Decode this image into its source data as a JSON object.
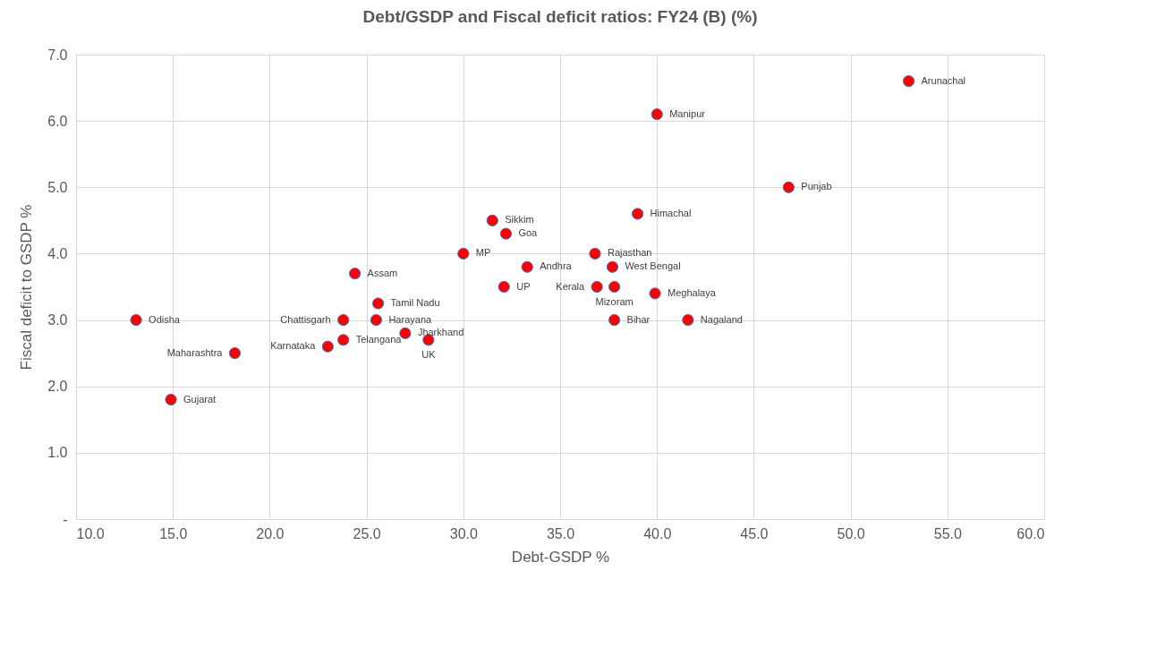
{
  "chart_data": {
    "type": "scatter",
    "title": "Debt/GSDP and Fiscal deficit ratios: FY24 (B) (%)",
    "xlabel": "Debt-GSDP %",
    "ylabel": "Fiscal deficit  to GSDP %",
    "x": [
      53.0,
      40.0,
      46.8,
      39.0,
      31.5,
      32.2,
      30.0,
      36.8,
      33.3,
      37.7,
      24.4,
      32.1,
      36.9,
      37.8,
      39.9,
      25.6,
      23.8,
      25.5,
      13.1,
      41.6,
      37.8,
      27.0,
      28.2,
      23.8,
      23.0,
      18.2,
      14.9
    ],
    "series": [
      {
        "color": "#ff0000",
        "values": [
          6.6,
          6.1,
          5.0,
          4.6,
          4.5,
          4.3,
          4.0,
          4.0,
          3.8,
          3.8,
          3.7,
          3.5,
          3.5,
          3.5,
          3.4,
          3.25,
          3.0,
          3.0,
          3.0,
          3.0,
          3.0,
          2.8,
          2.7,
          2.7,
          2.6,
          2.5,
          1.8
        ]
      }
    ],
    "annotations": [
      {
        "text": "Arunachal",
        "x": 53.0,
        "y": 6.6
      },
      {
        "text": "Manipur",
        "x": 40.0,
        "y": 6.1
      },
      {
        "text": "Punjab",
        "x": 46.8,
        "y": 5.0
      },
      {
        "text": "Himachal",
        "x": 39.0,
        "y": 4.6
      },
      {
        "text": "Sikkim",
        "x": 31.5,
        "y": 4.5
      },
      {
        "text": "Goa",
        "x": 32.2,
        "y": 4.3
      },
      {
        "text": "MP",
        "x": 30.0,
        "y": 4.0
      },
      {
        "text": "Rajasthan",
        "x": 36.8,
        "y": 4.0
      },
      {
        "text": "Andhra",
        "x": 33.3,
        "y": 3.8
      },
      {
        "text": "West Bengal",
        "x": 37.7,
        "y": 3.8
      },
      {
        "text": "Assam",
        "x": 24.4,
        "y": 3.7
      },
      {
        "text": "UP",
        "x": 32.1,
        "y": 3.5
      },
      {
        "text": "Kerala",
        "x": 36.9,
        "y": 3.5
      },
      {
        "text": "Mizoram",
        "x": 37.8,
        "y": 3.5
      },
      {
        "text": "Meghalaya",
        "x": 39.9,
        "y": 3.4
      },
      {
        "text": "Tamil Nadu",
        "x": 25.6,
        "y": 3.25
      },
      {
        "text": "Chattisgarh",
        "x": 23.8,
        "y": 3.0
      },
      {
        "text": "Harayana",
        "x": 25.5,
        "y": 3.0
      },
      {
        "text": "Odisha",
        "x": 13.1,
        "y": 3.0
      },
      {
        "text": "Nagaland",
        "x": 41.6,
        "y": 3.0
      },
      {
        "text": "Bihar",
        "x": 37.8,
        "y": 3.0
      },
      {
        "text": "Jharkhand",
        "x": 27.0,
        "y": 2.8
      },
      {
        "text": "UK",
        "x": 28.2,
        "y": 2.7
      },
      {
        "text": "Telangana",
        "x": 23.8,
        "y": 2.7
      },
      {
        "text": "Karnataka",
        "x": 23.0,
        "y": 2.6
      },
      {
        "text": "Maharashtra",
        "x": 18.2,
        "y": 2.5
      },
      {
        "text": "Gujarat",
        "x": 14.9,
        "y": 1.8
      }
    ],
    "xlim": [
      10,
      60
    ],
    "xticks": [
      {
        "value": 10,
        "label": "10.0"
      },
      {
        "value": 15,
        "label": "15.0"
      },
      {
        "value": 20,
        "label": "20.0"
      },
      {
        "value": 25,
        "label": "25.0"
      },
      {
        "value": 30,
        "label": "30.0"
      },
      {
        "value": 35,
        "label": "35.0"
      },
      {
        "value": 40,
        "label": "40.0"
      },
      {
        "value": 45,
        "label": "45.0"
      },
      {
        "value": 50,
        "label": "50.0"
      },
      {
        "value": 55,
        "label": "55.0"
      },
      {
        "value": 60,
        "label": "60.0"
      }
    ],
    "ylim": [
      0,
      7
    ],
    "yticks": [
      {
        "value": 0,
        "label": "-"
      },
      {
        "value": 1,
        "label": "1.0"
      },
      {
        "value": 2,
        "label": "2.0"
      },
      {
        "value": 3,
        "label": "3.0"
      },
      {
        "value": 4,
        "label": "4.0"
      },
      {
        "value": 5,
        "label": "5.0"
      },
      {
        "value": 6,
        "label": "6.0"
      },
      {
        "value": 7,
        "label": "7.0"
      }
    ],
    "grid": true,
    "marker": "circle"
  }
}
